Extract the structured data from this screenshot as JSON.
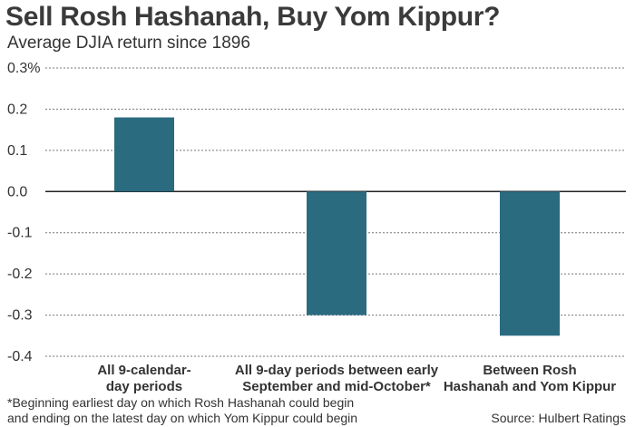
{
  "chart_data": {
    "type": "bar",
    "title": "Sell Rosh Hashanah, Buy Yom Kippur?",
    "subtitle": "Average DJIA return since 1896",
    "categories": [
      [
        "All 9-calendar-",
        "day periods"
      ],
      [
        "All 9-day periods between early",
        "September and mid-October*"
      ],
      [
        "Between Rosh",
        "Hashanah and Yom Kippur"
      ]
    ],
    "values": [
      0.18,
      -0.3,
      -0.35
    ],
    "ylim": [
      -0.4,
      0.3
    ],
    "yticks": [
      0.3,
      0.2,
      0.1,
      0.0,
      -0.1,
      -0.2,
      -0.3,
      -0.4
    ],
    "ytick_labels": [
      "0.3%",
      "0.2",
      "0.1",
      "0.0",
      "-0.1",
      "-0.2",
      "-0.3",
      "-0.4"
    ],
    "grid": true,
    "bar_color": "#2a6b80"
  },
  "footnote": [
    "*Beginning earliest day on which Rosh Hashanah could begin",
    "and ending on the latest day on which Yom Kippur could begin"
  ],
  "source": "Source: Hulbert Ratings"
}
